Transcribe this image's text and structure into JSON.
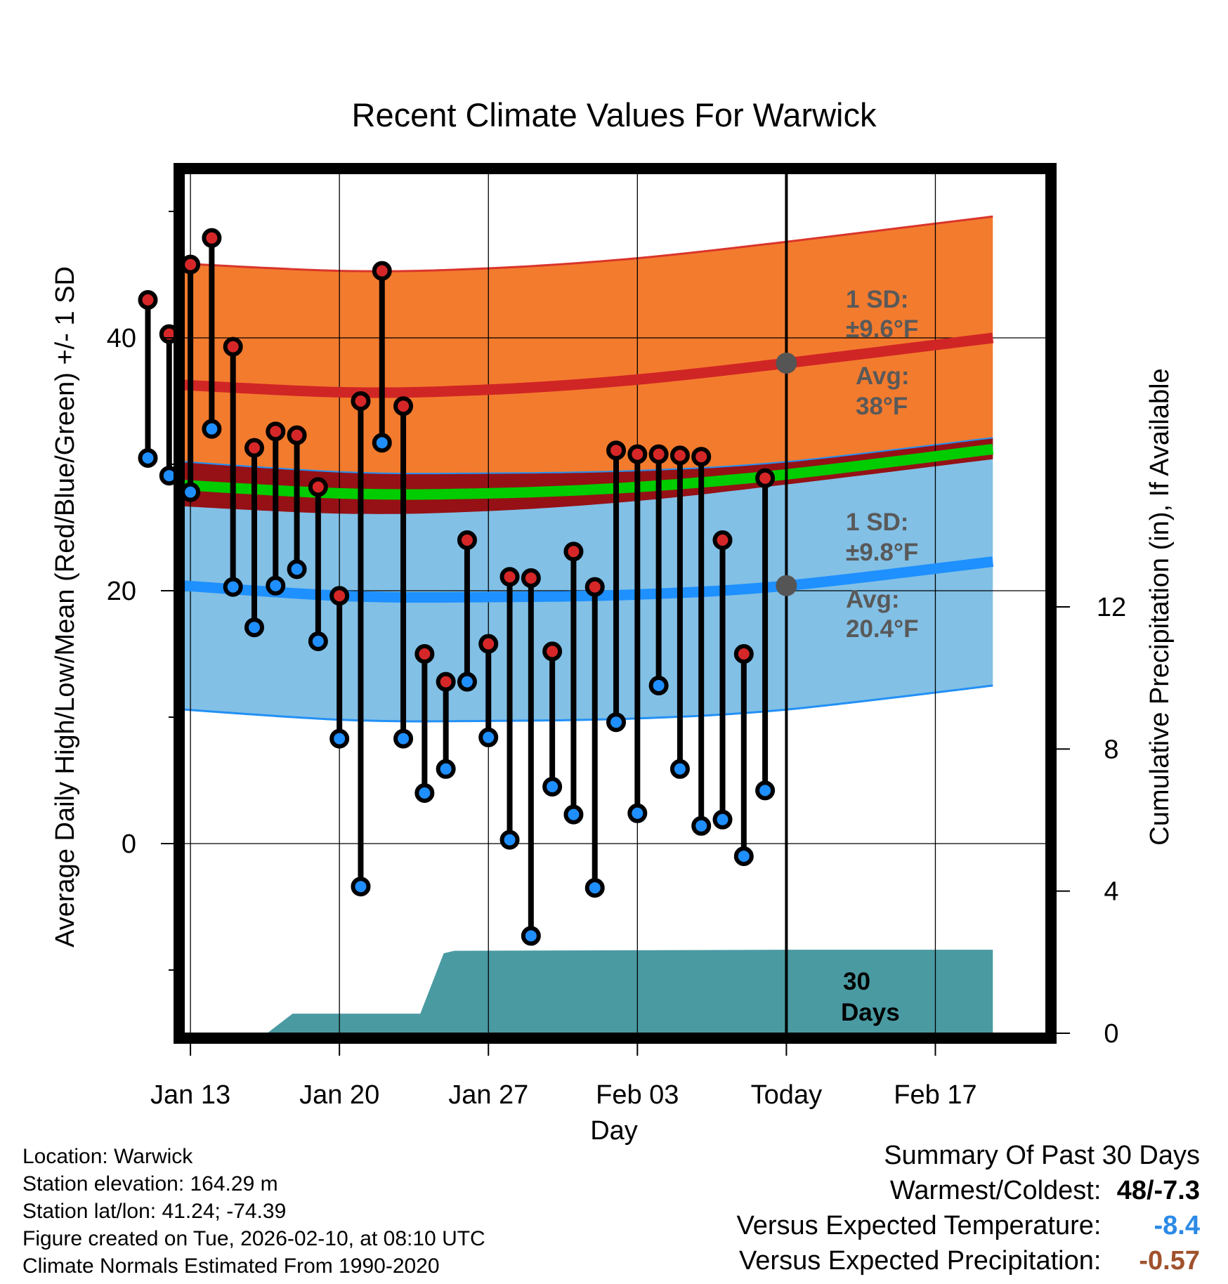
{
  "chart_data": {
    "type": "line",
    "title": "Recent Climate Values For Warwick",
    "xlabel": "Day",
    "ylabel": "Average Daily High/Low/Mean (Red/Blue/Green) +/- 1 SD",
    "y2label": "Cumulative Precipitation (in), If Available",
    "xlim": [
      -0.3,
      40.2
    ],
    "ylim": [
      -15,
      53
    ],
    "y2lim": [
      0,
      24.2
    ],
    "x_ticks": [
      {
        "x": 0,
        "label": "Jan 13"
      },
      {
        "x": 7,
        "label": "Jan 20"
      },
      {
        "x": 14,
        "label": "Jan 27"
      },
      {
        "x": 21,
        "label": "Feb 03"
      },
      {
        "x": 28,
        "label": "Today"
      },
      {
        "x": 35,
        "label": "Feb 17"
      }
    ],
    "y_ticks": [
      0,
      20,
      40
    ],
    "y2_ticks": [
      0,
      4,
      8,
      12
    ],
    "days": [
      -2,
      -1,
      0,
      1,
      2,
      3,
      4,
      5,
      6,
      7,
      8,
      9,
      10,
      11,
      12,
      13,
      14,
      15,
      16,
      17,
      18,
      19,
      20,
      21,
      22,
      23,
      24,
      25,
      26,
      27
    ],
    "highs": [
      43,
      40.3,
      45.8,
      47.9,
      39.3,
      31.3,
      32.6,
      32.3,
      28.2,
      19.6,
      35,
      45.3,
      34.6,
      15,
      12.8,
      24,
      15.8,
      21.1,
      21,
      15.2,
      23.1,
      20.3,
      31.1,
      30.8,
      30.8,
      30.7,
      30.6,
      24,
      15,
      28.9
    ],
    "lows": [
      30.5,
      29.1,
      27.8,
      32.8,
      20.3,
      17.1,
      20.4,
      21.7,
      16,
      8.3,
      -3.4,
      31.7,
      8.3,
      4,
      5.9,
      12.8,
      8.4,
      0.3,
      -7.3,
      4.5,
      2.3,
      -3.5,
      9.6,
      2.4,
      12.5,
      5.9,
      1.4,
      1.9,
      -1,
      4.2
    ],
    "normals": {
      "x": [
        -2.7,
        7,
        14,
        21,
        28,
        37.7
      ],
      "high_avg": [
        36.5,
        35.7,
        35.9,
        36.7,
        38,
        40
      ],
      "high_sd_upper": [
        46.1,
        45.3,
        45.5,
        46.3,
        47.6,
        49.6
      ],
      "high_sd_lower": [
        26.9,
        26.1,
        26.3,
        27.1,
        28.4,
        30.4
      ],
      "low_avg": [
        20.7,
        19.6,
        19.5,
        19.7,
        20.4,
        22.3
      ],
      "low_sd_upper": [
        30.5,
        29.4,
        29.3,
        29.5,
        30.2,
        32.1
      ],
      "low_sd_lower": [
        10.9,
        9.8,
        9.7,
        9.9,
        10.6,
        12.5
      ],
      "mean_avg": [
        28.6,
        27.7,
        27.7,
        28.2,
        29.2,
        31.2
      ]
    },
    "precip": {
      "x": [
        -2.7,
        3.6,
        4.8,
        10.8,
        11.9,
        12.4,
        28,
        37.7
      ],
      "cum": [
        0,
        0,
        0.55,
        0.55,
        2.25,
        2.32,
        2.35,
        2.35
      ]
    },
    "annotations": {
      "high_sd_label": "1 SD:",
      "high_sd_value": "±9.6°F",
      "high_avg_label": "Avg:",
      "high_avg_value": "38°F",
      "low_sd_label": "1 SD:",
      "low_sd_value": "±9.8°F",
      "low_avg_label": "Avg:",
      "low_avg_value": "20.4°F",
      "period_number": "30",
      "period_unit": "Days"
    },
    "today_x": 28,
    "today_high_avg": 38,
    "today_low_avg": 20.4,
    "colors": {
      "high_band": "#f37b2e",
      "high_edge": "#d9352b",
      "high_line": "#d02525",
      "low_band": "#82c0e6",
      "low_edge": "#2290f5",
      "low_line": "#1e90ff",
      "overlap": "#951116",
      "mean_line": "#00cc00",
      "precip": "#4a9aa2",
      "high_dot": "#d62728",
      "low_dot": "#1f8fff",
      "marker": "#555555",
      "annotation": "#595959"
    }
  },
  "info": {
    "location": "Location: Warwick",
    "elevation": "Station elevation: 164.29 m",
    "latlon": "Station lat/lon: 41.24; -74.39",
    "created": "Figure created on Tue, 2026-02-10, at 08:10 UTC",
    "normals": "Climate Normals Estimated From 1990-2020"
  },
  "summary": {
    "title": "Summary Of Past 30 Days",
    "warmest_label": "Warmest/Coldest:",
    "warmest_value": "48/-7.3",
    "temp_label": "Versus Expected Temperature:",
    "temp_value": "-8.4",
    "temp_color": "#2b8ae6",
    "precip_label": "Versus Expected Precipitation:",
    "precip_value": "-0.57",
    "precip_color": "#a0522d"
  }
}
